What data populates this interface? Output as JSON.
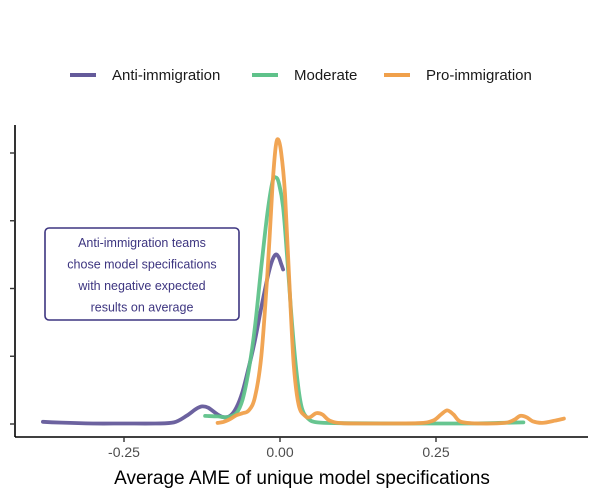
{
  "chart_data": {
    "type": "line",
    "xlabel": "Average AME of unique model specifications",
    "ylabel": "",
    "xlim": [
      -0.4,
      0.45
    ],
    "ylim": [
      0,
      1
    ],
    "x_ticks": [
      -0.25,
      0,
      0.25
    ],
    "x_tick_labels": [
      "-0.25",
      "0.00",
      "0.25"
    ],
    "y_ticks": [
      0,
      0.25,
      0.5,
      0.75,
      1.0
    ],
    "grid": false,
    "legend_position": "top",
    "series": [
      {
        "name": "Anti-immigration",
        "color": "#645a9a",
        "points": [
          [
            -0.38,
            0.008
          ],
          [
            -0.35,
            0.005
          ],
          [
            -0.3,
            0.002
          ],
          [
            -0.25,
            0.002
          ],
          [
            -0.2,
            0.002
          ],
          [
            -0.17,
            0.006
          ],
          [
            -0.15,
            0.03
          ],
          [
            -0.135,
            0.055
          ],
          [
            -0.125,
            0.065
          ],
          [
            -0.115,
            0.06
          ],
          [
            -0.1,
            0.035
          ],
          [
            -0.09,
            0.025
          ],
          [
            -0.08,
            0.03
          ],
          [
            -0.07,
            0.06
          ],
          [
            -0.06,
            0.12
          ],
          [
            -0.05,
            0.21
          ],
          [
            -0.04,
            0.31
          ],
          [
            -0.03,
            0.43
          ],
          [
            -0.02,
            0.54
          ],
          [
            -0.013,
            0.6
          ],
          [
            -0.007,
            0.625
          ],
          [
            -0.002,
            0.615
          ],
          [
            0.002,
            0.59
          ],
          [
            0.005,
            0.57
          ]
        ]
      },
      {
        "name": "Moderate",
        "color": "#5fc28a",
        "points": [
          [
            -0.12,
            0.03
          ],
          [
            -0.1,
            0.028
          ],
          [
            -0.085,
            0.025
          ],
          [
            -0.07,
            0.04
          ],
          [
            -0.06,
            0.09
          ],
          [
            -0.05,
            0.2
          ],
          [
            -0.04,
            0.36
          ],
          [
            -0.03,
            0.58
          ],
          [
            -0.02,
            0.78
          ],
          [
            -0.012,
            0.895
          ],
          [
            -0.007,
            0.91
          ],
          [
            -0.002,
            0.89
          ],
          [
            0.005,
            0.8
          ],
          [
            0.012,
            0.6
          ],
          [
            0.02,
            0.35
          ],
          [
            0.028,
            0.16
          ],
          [
            0.035,
            0.06
          ],
          [
            0.045,
            0.02
          ],
          [
            0.06,
            0.006
          ],
          [
            0.1,
            0.003
          ],
          [
            0.2,
            0.002
          ],
          [
            0.3,
            0.002
          ],
          [
            0.35,
            0.004
          ],
          [
            0.39,
            0.006
          ]
        ]
      },
      {
        "name": "Pro-immigration",
        "color": "#f0a04b",
        "points": [
          [
            -0.1,
            0.004
          ],
          [
            -0.09,
            0.008
          ],
          [
            -0.08,
            0.018
          ],
          [
            -0.07,
            0.032
          ],
          [
            -0.06,
            0.04
          ],
          [
            -0.05,
            0.05
          ],
          [
            -0.04,
            0.1
          ],
          [
            -0.03,
            0.25
          ],
          [
            -0.02,
            0.56
          ],
          [
            -0.012,
            0.88
          ],
          [
            -0.007,
            1.02
          ],
          [
            -0.003,
            1.05
          ],
          [
            0.002,
            1.0
          ],
          [
            0.008,
            0.85
          ],
          [
            0.015,
            0.52
          ],
          [
            0.022,
            0.22
          ],
          [
            0.03,
            0.07
          ],
          [
            0.04,
            0.03
          ],
          [
            0.048,
            0.025
          ],
          [
            0.058,
            0.04
          ],
          [
            0.068,
            0.035
          ],
          [
            0.08,
            0.012
          ],
          [
            0.1,
            0.003
          ],
          [
            0.15,
            0.002
          ],
          [
            0.22,
            0.003
          ],
          [
            0.245,
            0.012
          ],
          [
            0.258,
            0.035
          ],
          [
            0.268,
            0.05
          ],
          [
            0.278,
            0.035
          ],
          [
            0.29,
            0.008
          ],
          [
            0.32,
            0.002
          ],
          [
            0.36,
            0.004
          ],
          [
            0.375,
            0.015
          ],
          [
            0.385,
            0.03
          ],
          [
            0.395,
            0.025
          ],
          [
            0.405,
            0.01
          ],
          [
            0.42,
            0.004
          ],
          [
            0.44,
            0.012
          ],
          [
            0.455,
            0.02
          ]
        ]
      }
    ],
    "annotation": {
      "lines": [
        "Anti-immigration teams",
        "chose model specifications",
        "with negative expected",
        "results on average"
      ],
      "color": "#3d3580"
    }
  }
}
